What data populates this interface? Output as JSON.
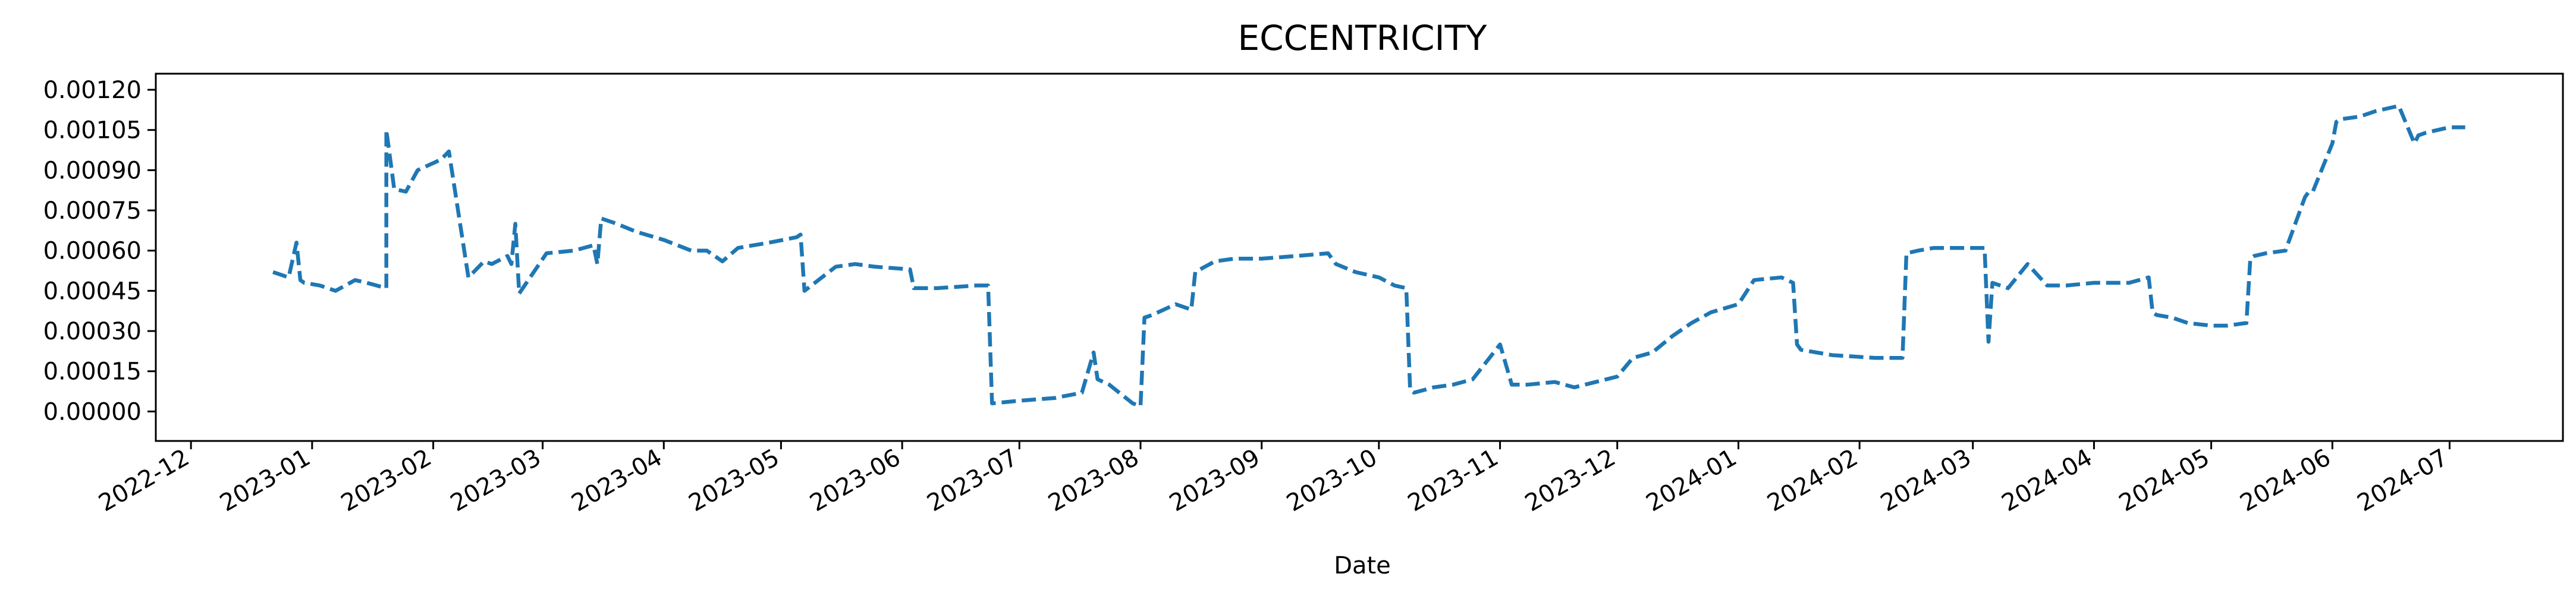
{
  "chart_data": {
    "type": "line",
    "title": "ECCENTRICITY",
    "xlabel": "Date",
    "ylabel": "",
    "x_tick_labels": [
      "2022-12",
      "2023-01",
      "2023-02",
      "2023-03",
      "2023-04",
      "2023-05",
      "2023-06",
      "2023-07",
      "2023-08",
      "2023-09",
      "2023-10",
      "2023-11",
      "2023-12",
      "2024-01",
      "2024-02",
      "2024-03",
      "2024-04",
      "2024-05",
      "2024-06",
      "2024-07"
    ],
    "y_tick_labels": [
      "0.00000",
      "0.00015",
      "0.00030",
      "0.00045",
      "0.00060",
      "0.00075",
      "0.00090",
      "0.00105",
      "0.00120"
    ],
    "xlim": [
      "2022-11-22",
      "2024-07-30"
    ],
    "ylim": [
      -0.00011,
      0.00126
    ],
    "line_color": "#1f77b4",
    "line_style": "dashed",
    "grid": false,
    "series": [
      {
        "name": "",
        "x": [
          "2022-12-22",
          "2022-12-26",
          "2022-12-28",
          "2022-12-29",
          "2022-12-30",
          "2023-01-03",
          "2023-01-07",
          "2023-01-12",
          "2023-01-15",
          "2023-01-20",
          "2023-01-20",
          "2023-01-22",
          "2023-01-25",
          "2023-01-28",
          "2023-02-03",
          "2023-02-05",
          "2023-02-10",
          "2023-02-14",
          "2023-02-16",
          "2023-02-20",
          "2023-02-21",
          "2023-02-22",
          "2023-02-23",
          "2023-03-02",
          "2023-03-09",
          "2023-03-14",
          "2023-03-15",
          "2023-03-16",
          "2023-03-20",
          "2023-03-25",
          "2023-04-01",
          "2023-04-08",
          "2023-04-12",
          "2023-04-16",
          "2023-04-20",
          "2023-04-28",
          "2023-05-05",
          "2023-05-06",
          "2023-05-07",
          "2023-05-15",
          "2023-05-20",
          "2023-05-25",
          "2023-06-03",
          "2023-06-04",
          "2023-06-10",
          "2023-06-20",
          "2023-06-23",
          "2023-06-24",
          "2023-07-01",
          "2023-07-10",
          "2023-07-17",
          "2023-07-20",
          "2023-07-21",
          "2023-07-24",
          "2023-07-30",
          "2023-08-01",
          "2023-08-02",
          "2023-08-04",
          "2023-08-10",
          "2023-08-14",
          "2023-08-15",
          "2023-08-20",
          "2023-08-25",
          "2023-09-01",
          "2023-09-10",
          "2023-09-18",
          "2023-09-20",
          "2023-09-25",
          "2023-10-01",
          "2023-10-05",
          "2023-10-08",
          "2023-10-09",
          "2023-10-10",
          "2023-10-15",
          "2023-10-20",
          "2023-10-25",
          "2023-11-01",
          "2023-11-04",
          "2023-11-08",
          "2023-11-15",
          "2023-11-20",
          "2023-12-01",
          "2023-12-05",
          "2023-12-10",
          "2023-12-15",
          "2023-12-20",
          "2023-12-25",
          "2024-01-01",
          "2024-01-05",
          "2024-01-12",
          "2024-01-15",
          "2024-01-16",
          "2024-01-17",
          "2024-01-25",
          "2024-02-05",
          "2024-02-12",
          "2024-02-13",
          "2024-02-16",
          "2024-02-20",
          "2024-02-25",
          "2024-03-04",
          "2024-03-05",
          "2024-03-06",
          "2024-03-10",
          "2024-03-15",
          "2024-03-20",
          "2024-03-25",
          "2024-04-01",
          "2024-04-05",
          "2024-04-10",
          "2024-04-15",
          "2024-04-16",
          "2024-04-17",
          "2024-04-21",
          "2024-04-25",
          "2024-05-01",
          "2024-05-05",
          "2024-05-10",
          "2024-05-11",
          "2024-05-12",
          "2024-05-15",
          "2024-05-20",
          "2024-05-25",
          "2024-05-26",
          "2024-05-27",
          "2024-06-01",
          "2024-06-02",
          "2024-06-03",
          "2024-06-08",
          "2024-06-12",
          "2024-06-18",
          "2024-06-22",
          "2024-06-23",
          "2024-06-25",
          "2024-07-01",
          "2024-07-05"
        ],
        "y": [
          0.00052,
          0.0005,
          0.00063,
          0.00049,
          0.00048,
          0.00047,
          0.00045,
          0.00049,
          0.00048,
          0.00046,
          0.00105,
          0.00083,
          0.00082,
          0.0009,
          0.00094,
          0.00097,
          0.0005,
          0.00056,
          0.00055,
          0.00058,
          0.00055,
          0.0007,
          0.00044,
          0.00059,
          0.0006,
          0.00062,
          0.00055,
          0.00072,
          0.0007,
          0.00067,
          0.00064,
          0.0006,
          0.0006,
          0.00056,
          0.00061,
          0.00063,
          0.00065,
          0.00066,
          0.00045,
          0.00054,
          0.00055,
          0.00054,
          0.00053,
          0.00046,
          0.00046,
          0.00047,
          0.00047,
          3e-05,
          4e-05,
          5e-05,
          7e-05,
          0.00022,
          0.00012,
          0.0001,
          3e-05,
          2e-05,
          0.00035,
          0.00036,
          0.0004,
          0.00038,
          0.00052,
          0.00056,
          0.00057,
          0.00057,
          0.00058,
          0.00059,
          0.00055,
          0.00052,
          0.0005,
          0.00047,
          0.00046,
          8e-05,
          7e-05,
          9e-05,
          0.0001,
          0.00012,
          0.00025,
          0.0001,
          0.0001,
          0.00011,
          9e-05,
          0.00013,
          0.0002,
          0.00022,
          0.00028,
          0.00033,
          0.00037,
          0.0004,
          0.00049,
          0.0005,
          0.00048,
          0.00025,
          0.00023,
          0.00021,
          0.0002,
          0.0002,
          0.00059,
          0.0006,
          0.00061,
          0.00061,
          0.00061,
          0.00026,
          0.00048,
          0.00046,
          0.00055,
          0.00047,
          0.00047,
          0.00048,
          0.00048,
          0.00048,
          0.0005,
          0.00037,
          0.00036,
          0.00035,
          0.00033,
          0.00032,
          0.00032,
          0.00033,
          0.00057,
          0.00058,
          0.00059,
          0.0006,
          0.0008,
          0.00082,
          0.00082,
          0.001,
          0.00108,
          0.00109,
          0.0011,
          0.00112,
          0.00114,
          0.001,
          0.00103,
          0.00104,
          0.00106,
          0.00106
        ]
      }
    ]
  }
}
